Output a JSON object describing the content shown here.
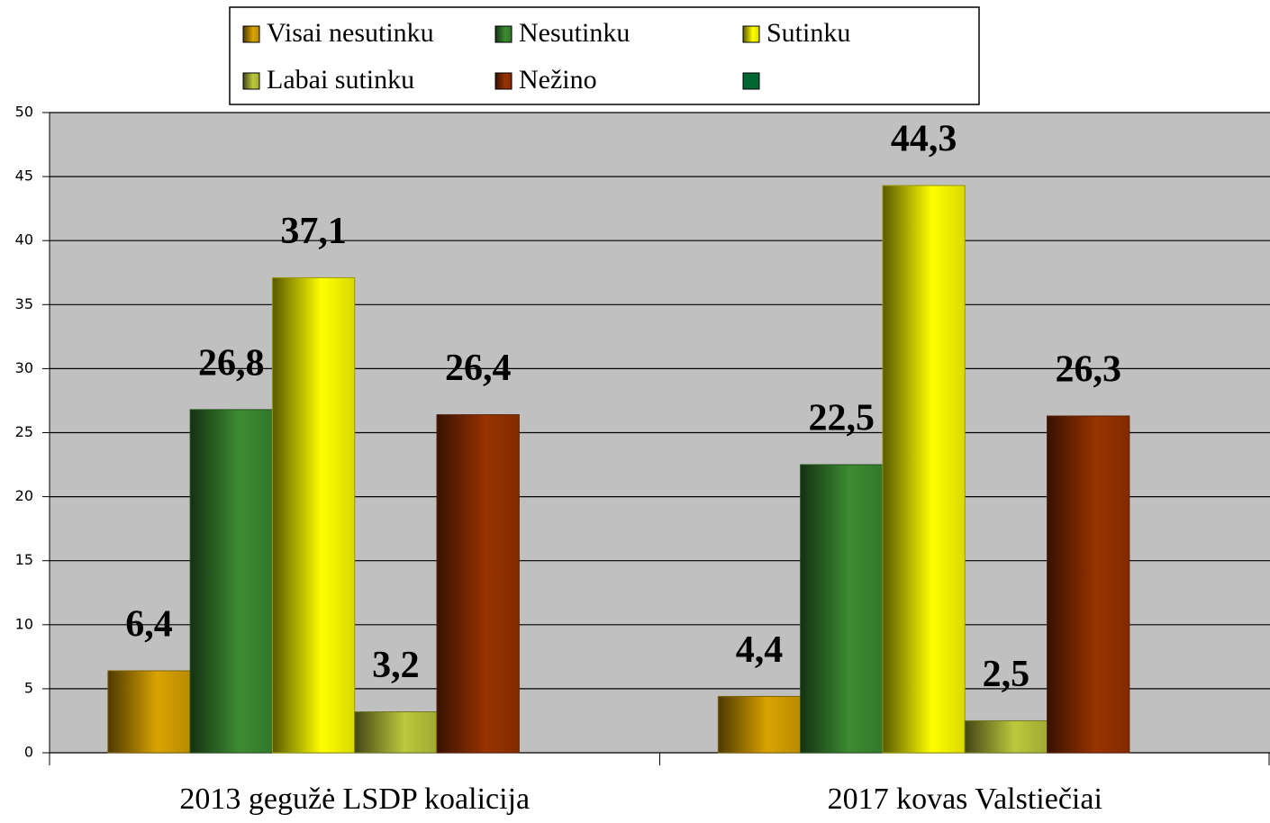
{
  "chart_data": {
    "type": "bar",
    "categories": [
      "2013 gegužė LSDP koalicija",
      "2017 kovas  Valstiečiai"
    ],
    "series": [
      {
        "name": "Visai nesutinku",
        "color": "#d9a300",
        "values": [
          6.4,
          4.4
        ],
        "value_labels": [
          "6,4",
          "4,4"
        ]
      },
      {
        "name": "Nesutinku",
        "color": "#3c8c32",
        "values": [
          26.8,
          22.5
        ],
        "value_labels": [
          "26,8",
          "22,5"
        ]
      },
      {
        "name": "Sutinku",
        "color": "#ffff00",
        "values": [
          37.1,
          44.3
        ],
        "value_labels": [
          "37,1",
          "44,3"
        ]
      },
      {
        "name": "Labai sutinku",
        "color": "#bcc83c",
        "values": [
          3.2,
          2.5
        ],
        "value_labels": [
          "3,2",
          "2,5"
        ]
      },
      {
        "name": "Nežino",
        "color": "#993300",
        "values": [
          26.4,
          26.3
        ],
        "value_labels": [
          "26,4",
          "26,3"
        ]
      }
    ],
    "ylim": [
      0,
      50
    ],
    "yticks": [
      0,
      5,
      10,
      15,
      20,
      25,
      30,
      35,
      40,
      45,
      50
    ],
    "grid": true
  }
}
